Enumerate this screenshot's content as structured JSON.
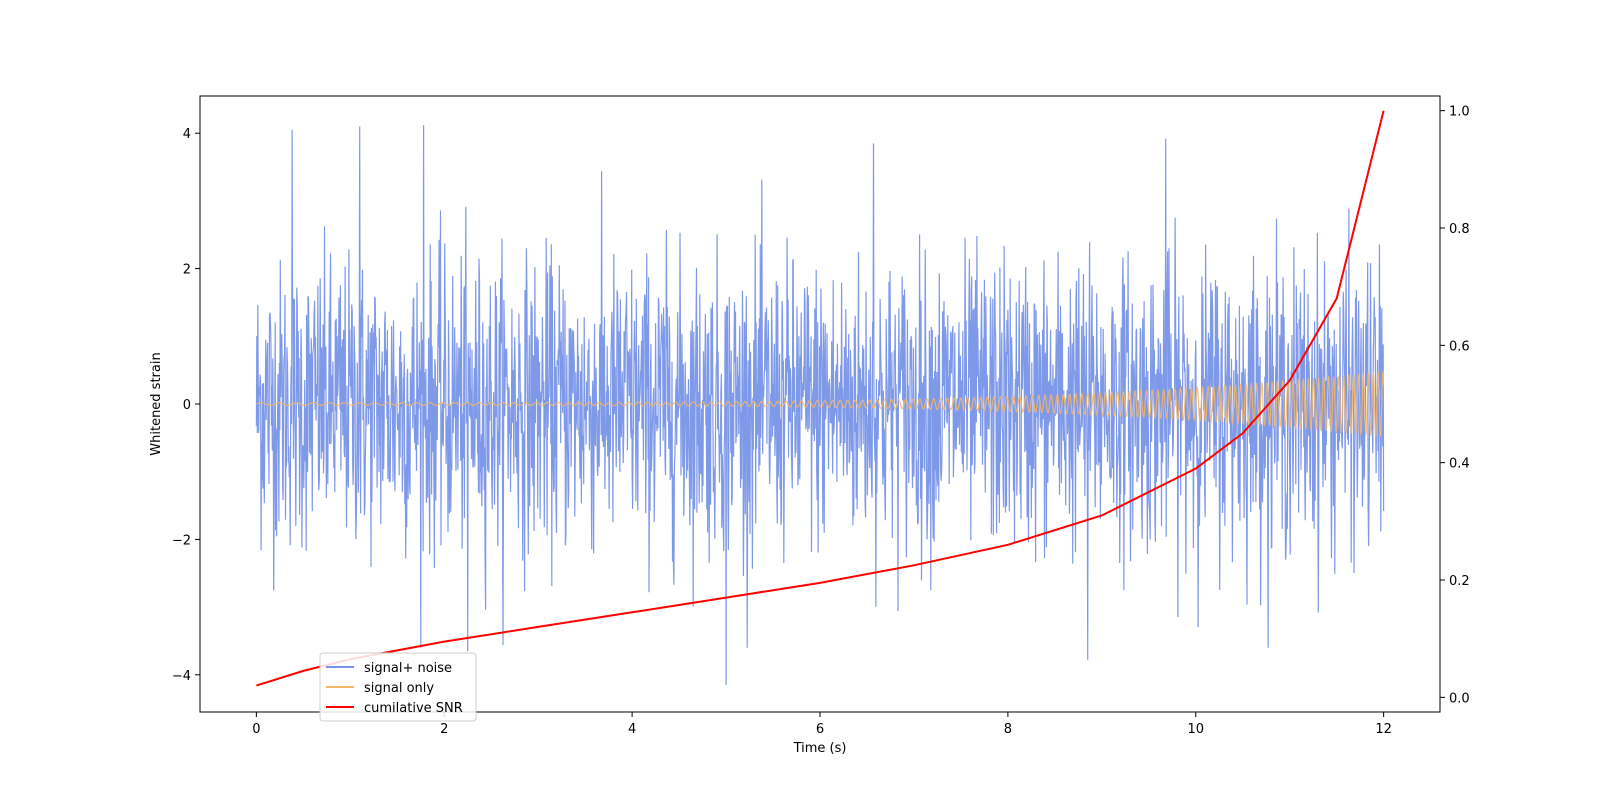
{
  "chart_data": {
    "type": "line",
    "title": "",
    "xlabel": "Time (s)",
    "ylabel": "Whitened strain",
    "y2label": "",
    "xlim": [
      -0.6,
      12.6
    ],
    "ylim": [
      -4.55,
      4.55
    ],
    "y2lim": [
      -0.025,
      1.025
    ],
    "xticks": [
      0,
      2,
      4,
      6,
      8,
      10,
      12
    ],
    "yticks": [
      -4,
      -2,
      0,
      2,
      4
    ],
    "y2ticks": [
      0.0,
      0.2,
      0.4,
      0.6,
      0.8,
      1.0
    ],
    "xtick_labels": [
      "0",
      "2",
      "4",
      "6",
      "8",
      "10",
      "12"
    ],
    "ytick_labels": [
      "−4",
      "−2",
      "0",
      "2",
      "4"
    ],
    "y2tick_labels": [
      "0.0",
      "0.2",
      "0.4",
      "0.6",
      "0.8",
      "1.0"
    ],
    "grid": false,
    "legend_position": "lower-left",
    "series": [
      {
        "name": "signal+ noise",
        "color": "#7894e8",
        "axis": "left",
        "style": "noise band",
        "x_range": [
          0,
          12
        ],
        "y_range": [
          -4.15,
          4.15
        ],
        "peaks": [
          {
            "x": 0.38,
            "y": 4.05
          },
          {
            "x": 1.1,
            "y": 4.1
          },
          {
            "x": 1.78,
            "y": 4.12
          },
          {
            "x": 6.57,
            "y": 3.85
          },
          {
            "x": 9.68,
            "y": 3.92
          },
          {
            "x": 5.0,
            "y": -4.15
          },
          {
            "x": 2.25,
            "y": -3.65
          },
          {
            "x": 8.85,
            "y": -3.78
          }
        ]
      },
      {
        "name": "signal only",
        "color": "#f5b66a",
        "axis": "left",
        "style": "chirp",
        "x_range": [
          0,
          12
        ],
        "amplitude_start": 0.02,
        "amplitude_end": 0.48
      },
      {
        "name": "cumilative SNR",
        "color": "#ff0000",
        "axis": "right",
        "x": [
          0,
          0.5,
          1,
          2,
          3,
          4,
          5,
          6,
          7,
          8,
          9,
          10,
          10.5,
          11,
          11.5,
          12
        ],
        "y": [
          0.02,
          0.045,
          0.065,
          0.095,
          0.12,
          0.145,
          0.17,
          0.195,
          0.225,
          0.26,
          0.31,
          0.39,
          0.45,
          0.54,
          0.68,
          1.0
        ]
      }
    ]
  }
}
